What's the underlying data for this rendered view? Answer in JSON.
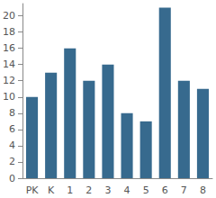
{
  "chart_data": {
    "type": "bar",
    "categories": [
      "PK",
      "K",
      "1",
      "2",
      "3",
      "4",
      "5",
      "6",
      "7",
      "8"
    ],
    "values": [
      10,
      13,
      16,
      12,
      14,
      8,
      7,
      21,
      12,
      11
    ],
    "color": "#376a8e",
    "ylim": [
      0,
      21.5
    ],
    "yticks": [
      0,
      2,
      4,
      6,
      8,
      10,
      12,
      14,
      16,
      18,
      20
    ],
    "grid": false
  }
}
